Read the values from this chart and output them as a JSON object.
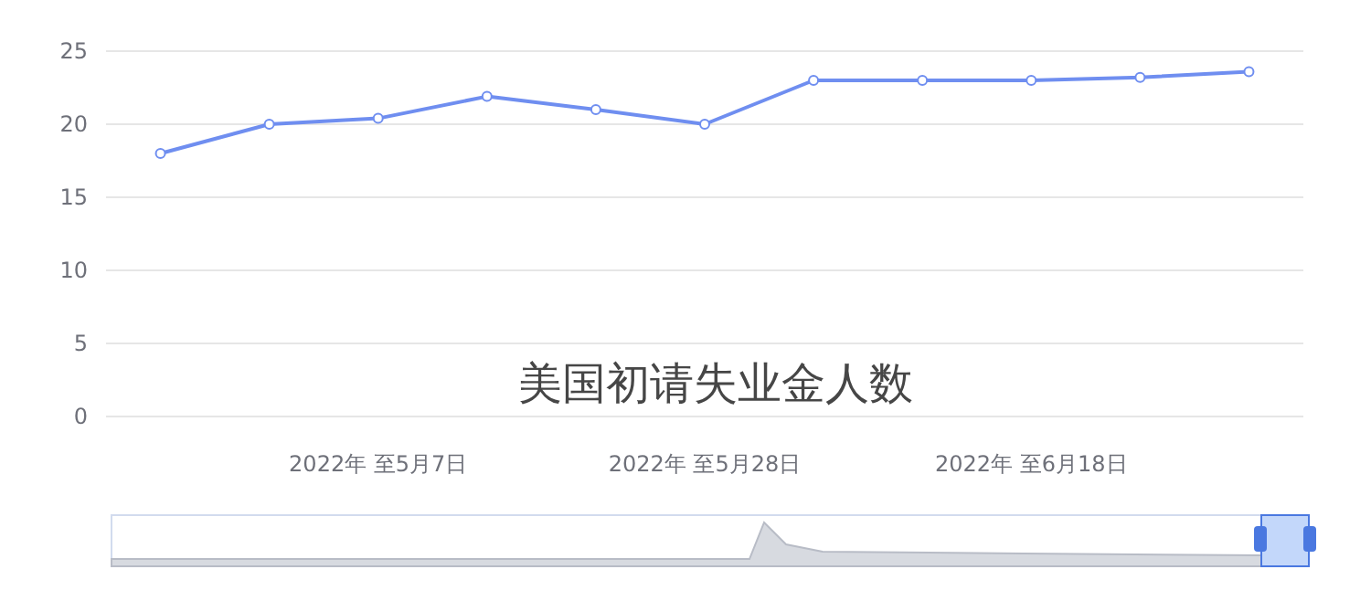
{
  "chart_data": {
    "type": "line",
    "title": "美国初请失业金人数",
    "categories": [
      null,
      null,
      "2022年 至5月7日",
      null,
      null,
      "2022年 至5月28日",
      null,
      null,
      "2022年 至6月18日",
      null,
      null
    ],
    "series": [
      {
        "color": "#6f8ef0",
        "values": [
          18,
          20,
          20.4,
          21.9,
          21,
          20,
          23,
          23,
          23,
          23.2,
          23.6
        ]
      }
    ],
    "ylim": [
      0,
      25
    ],
    "yticks": [
      0,
      5,
      10,
      15,
      20,
      25
    ],
    "grid": "y",
    "marker": "circle",
    "line_style": "solid"
  }
}
